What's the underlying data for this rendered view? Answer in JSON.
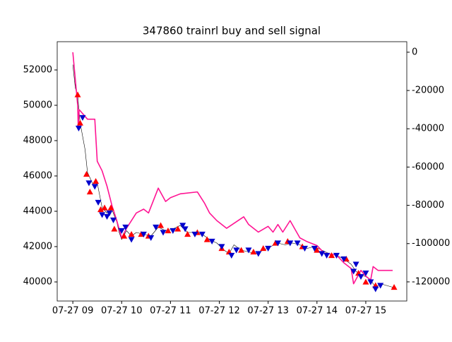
{
  "chart_data": {
    "type": "line",
    "title": "347860 trainrl buy and sell signal",
    "xlim": [
      8.68,
      15.84
    ],
    "xticks": [
      {
        "value": 9,
        "label": "07-27 09"
      },
      {
        "value": 10,
        "label": "07-27 10"
      },
      {
        "value": 11,
        "label": "07-27 11"
      },
      {
        "value": 12,
        "label": "07-27 12"
      },
      {
        "value": 13,
        "label": "07-27 13"
      },
      {
        "value": 14,
        "label": "07-27 14"
      },
      {
        "value": 15,
        "label": "07-27 15"
      }
    ],
    "ylim": [
      38920,
      53600
    ],
    "yticks": [
      40000,
      42000,
      44000,
      46000,
      48000,
      50000,
      52000
    ],
    "y2lim": [
      -130000,
      5500
    ],
    "y2ticks": [
      0,
      -20000,
      -40000,
      -60000,
      -80000,
      -100000,
      -120000
    ],
    "series": [
      {
        "type": "line",
        "color": "#000000",
        "width": 0.6,
        "x": [
          9.0,
          9.05,
          9.1,
          9.15,
          9.25,
          9.3,
          9.4,
          9.45,
          9.5,
          9.6,
          9.7,
          9.8,
          9.9,
          9.95,
          10.0,
          10.1,
          10.2,
          10.3,
          10.45,
          10.6,
          10.75,
          10.9,
          11.05,
          11.2,
          11.35,
          11.5,
          11.65,
          11.8,
          11.95,
          12.1,
          12.2,
          12.3,
          12.45,
          12.6,
          12.75,
          12.9,
          13.05,
          13.2,
          13.35,
          13.5,
          13.65,
          13.8,
          13.95,
          14.1,
          14.25,
          14.4,
          14.55,
          14.7,
          14.8,
          14.9,
          15.0,
          15.1,
          15.2,
          15.3,
          15.55
        ],
        "values": [
          52300,
          51000,
          50500,
          49000,
          47500,
          46200,
          45600,
          45400,
          45600,
          44200,
          43900,
          44100,
          43400,
          42800,
          42400,
          42900,
          42600,
          42800,
          42700,
          42600,
          43100,
          42900,
          43000,
          43200,
          42800,
          42800,
          42700,
          42400,
          42200,
          41800,
          41600,
          42100,
          41800,
          41700,
          41600,
          41800,
          42000,
          42200,
          42100,
          42200,
          42100,
          41900,
          42000,
          41800,
          41600,
          41500,
          41300,
          41000,
          40600,
          40400,
          40300,
          40100,
          39700,
          39900,
          39700
        ]
      },
      {
        "type": "line",
        "axis": "y2",
        "color": "#ff1493",
        "width": 1.6,
        "x": [
          9.0,
          9.1,
          9.11,
          9.13,
          9.3,
          9.45,
          9.5,
          9.6,
          9.7,
          9.8,
          9.9,
          10.0,
          10.1,
          10.3,
          10.45,
          10.55,
          10.75,
          10.9,
          11.0,
          11.2,
          11.55,
          11.7,
          11.8,
          11.95,
          12.15,
          12.5,
          12.6,
          12.8,
          13.0,
          13.1,
          13.2,
          13.3,
          13.45,
          13.65,
          13.8,
          14.0,
          14.15,
          14.4,
          14.55,
          14.7,
          14.75,
          14.9,
          15.0,
          15.1,
          15.15,
          15.25,
          15.55
        ],
        "values": [
          0,
          -28000,
          -39000,
          -30000,
          -35000,
          -35000,
          -57000,
          -62000,
          -70000,
          -80000,
          -88000,
          -97000,
          -92000,
          -84000,
          -82000,
          -84000,
          -71000,
          -78000,
          -76000,
          -74000,
          -73000,
          -79000,
          -84000,
          -88000,
          -92000,
          -86000,
          -90000,
          -94000,
          -91000,
          -94000,
          -90000,
          -94000,
          -88000,
          -97000,
          -99000,
          -101000,
          -105000,
          -106000,
          -110000,
          -113000,
          -121000,
          -114000,
          -117000,
          -119000,
          -112000,
          -114000,
          -114000
        ]
      },
      {
        "type": "scatter",
        "marker": "triangle-up",
        "color": "#ff0000",
        "x": [
          9.1,
          9.15,
          9.28,
          9.35,
          9.47,
          9.57,
          9.65,
          9.78,
          9.85,
          10.05,
          10.2,
          10.4,
          10.55,
          10.8,
          10.95,
          11.15,
          11.35,
          11.55,
          11.75,
          12.05,
          12.2,
          12.45,
          12.7,
          12.9,
          13.15,
          13.4,
          13.7,
          14.0,
          14.3,
          14.6,
          14.85,
          15.0,
          15.2,
          15.58
        ],
        "values": [
          50600,
          49000,
          46100,
          45100,
          45700,
          44100,
          44200,
          44200,
          43000,
          42600,
          42700,
          42700,
          42600,
          43200,
          42900,
          43000,
          42700,
          42800,
          42400,
          41900,
          41700,
          41800,
          41700,
          41900,
          42200,
          42300,
          42000,
          41800,
          41500,
          41300,
          40500,
          40000,
          39800,
          39700
        ]
      },
      {
        "type": "scatter",
        "marker": "triangle-down",
        "color": "#0000cd",
        "x": [
          9.12,
          9.2,
          9.33,
          9.45,
          9.52,
          9.6,
          9.7,
          9.75,
          9.83,
          10.0,
          10.08,
          10.2,
          10.45,
          10.6,
          10.7,
          10.85,
          11.05,
          11.25,
          11.3,
          11.5,
          11.65,
          11.85,
          12.05,
          12.25,
          12.35,
          12.6,
          12.8,
          13.0,
          13.2,
          13.45,
          13.6,
          13.75,
          13.95,
          14.1,
          14.2,
          14.4,
          14.55,
          14.75,
          14.8,
          14.9,
          15.0,
          15.1,
          15.2,
          15.3
        ],
        "values": [
          48700,
          49300,
          45600,
          45400,
          44500,
          43800,
          43700,
          43900,
          43500,
          42900,
          43100,
          42400,
          42700,
          42500,
          43100,
          42800,
          42900,
          43200,
          43000,
          42700,
          42700,
          42300,
          42000,
          41500,
          41800,
          41800,
          41600,
          41900,
          42200,
          42200,
          42200,
          41900,
          41900,
          41600,
          41500,
          41500,
          41300,
          40600,
          41000,
          40300,
          40500,
          40000,
          39600,
          39800
        ]
      }
    ]
  }
}
